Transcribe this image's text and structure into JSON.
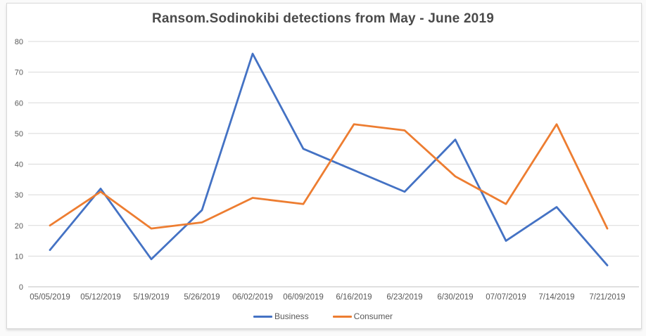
{
  "chart_data": {
    "type": "line",
    "title": "Ransom.Sodinokibi detections from May - June 2019",
    "categories": [
      "05/05/2019",
      "05/12/2019",
      "5/19/2019",
      "5/26/2019",
      "06/02/2019",
      "06/09/2019",
      "6/16/2019",
      "6/23/2019",
      "6/30/2019",
      "07/07/2019",
      "7/14/2019",
      "7/21/2019"
    ],
    "series": [
      {
        "name": "Business",
        "color": "#4472C4",
        "values": [
          12,
          32,
          9,
          25,
          76,
          45,
          38,
          31,
          48,
          15,
          26,
          7
        ]
      },
      {
        "name": "Consumer",
        "color": "#ED7D31",
        "values": [
          20,
          31,
          19,
          21,
          29,
          27,
          53,
          51,
          36,
          27,
          53,
          19
        ]
      }
    ],
    "xlabel": "",
    "ylabel": "",
    "ylim": [
      0,
      80
    ],
    "yticks": [
      0,
      10,
      20,
      30,
      40,
      50,
      60,
      70,
      80
    ],
    "grid": "horizontal",
    "legend_position": "bottom",
    "colors": {
      "gridline": "#d9d9d9",
      "axis_line": "#bfbfbf",
      "axis_text": "#595959",
      "title_text": "#4a4a4a",
      "background": "#ffffff",
      "border": "#d9d9d9"
    }
  }
}
